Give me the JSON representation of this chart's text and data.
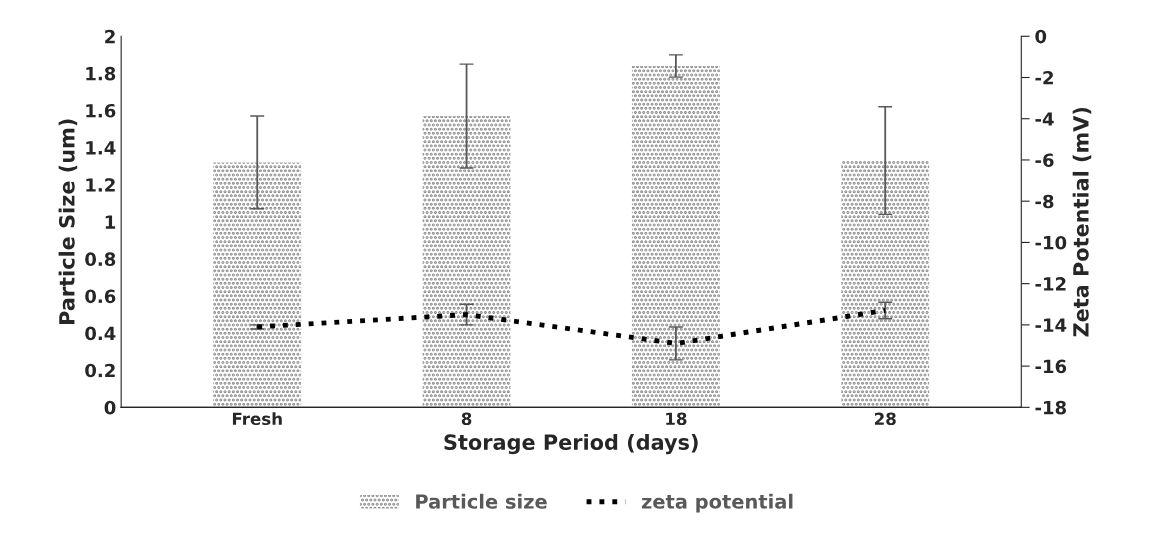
{
  "chart_data": {
    "type": "bar",
    "xlabel": "Storage Period (days)",
    "ylabel": "Particle Size (um)",
    "y2label": "Zeta Potential (mV)",
    "categories": [
      "Fresh",
      "8",
      "18",
      "28"
    ],
    "series": [
      {
        "name": "Particle size",
        "color": "#808080",
        "values": [
          1.32,
          1.57,
          1.84,
          1.33
        ],
        "errors": [
          0.25,
          0.28,
          0.06,
          0.29
        ]
      },
      {
        "name": "zeta potential",
        "type": "line",
        "axis": "y2",
        "color": "#000000",
        "line_style": "dotted",
        "values": [
          -14.1,
          -13.5,
          -14.9,
          -13.3
        ],
        "errors": [
          0.1,
          0.5,
          0.8,
          0.4
        ]
      }
    ],
    "ylim": [
      0,
      2
    ],
    "yticks": [
      0,
      0.2,
      0.4,
      0.6,
      0.8,
      1,
      1.2,
      1.4,
      1.6,
      1.8,
      2
    ],
    "y2lim": [
      -18,
      0
    ],
    "y2ticks": [
      -18,
      -16,
      -14,
      -12,
      -10,
      -8,
      -6,
      -4,
      -2,
      0
    ],
    "grid": false,
    "legend": "bottom"
  }
}
